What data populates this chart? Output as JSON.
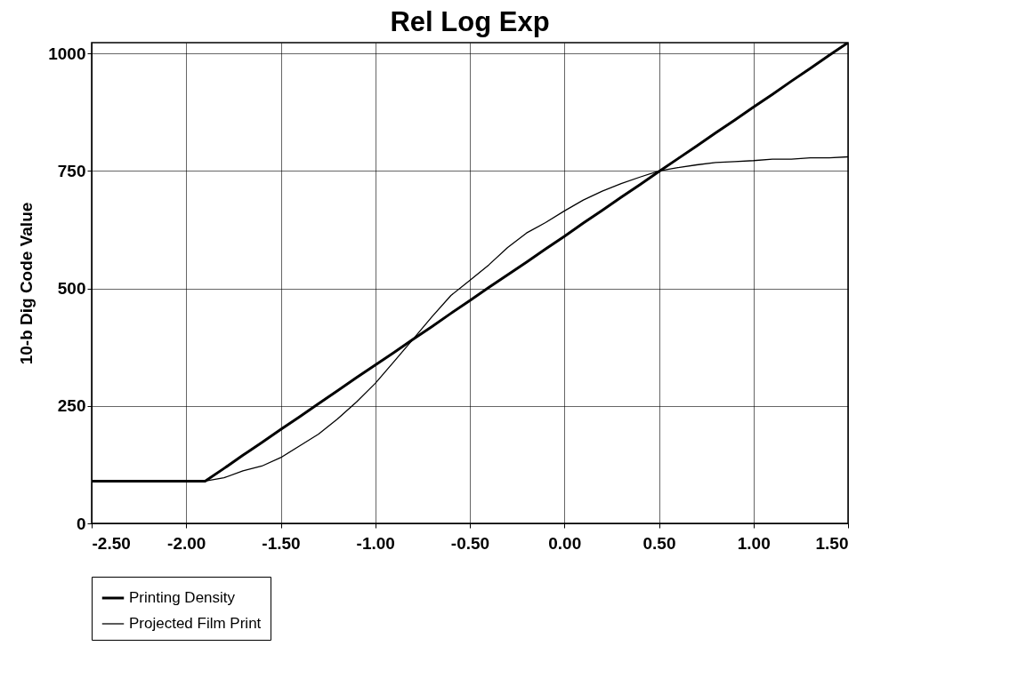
{
  "chart_data": {
    "type": "line",
    "title": "Rel Log Exp",
    "ylabel": "10-b Dig Code Value",
    "x": [
      -2.5,
      -2.4,
      -2.3,
      -2.2,
      -2.1,
      -2.0,
      -1.9,
      -1.8,
      -1.7,
      -1.6,
      -1.5,
      -1.4,
      -1.3,
      -1.2,
      -1.1,
      -1.0,
      -0.9,
      -0.8,
      -0.7,
      -0.6,
      -0.5,
      -0.4,
      -0.3,
      -0.2,
      -0.1,
      0.0,
      0.1,
      0.2,
      0.3,
      0.4,
      0.5,
      0.6,
      0.7,
      0.8,
      0.9,
      1.0,
      1.1,
      1.2,
      1.3,
      1.4,
      1.5
    ],
    "series": [
      {
        "name": "Printing Density",
        "color": "#000000",
        "values": [
          90,
          90,
          90,
          90,
          90,
          90,
          90,
          117,
          145,
          172,
          200,
          227,
          255,
          282,
          310,
          337,
          364,
          392,
          419,
          447,
          474,
          502,
          529,
          556,
          584,
          611,
          639,
          666,
          694,
          721,
          749,
          776,
          803,
          831,
          858,
          886,
          913,
          941,
          968,
          996,
          1023
        ]
      },
      {
        "name": "Projected Film Print",
        "color": "#000000",
        "values": [
          90,
          90,
          90,
          90,
          90,
          90,
          90,
          97,
          112,
          122,
          140,
          165,
          190,
          222,
          258,
          298,
          345,
          392,
          440,
          485,
          517,
          550,
          587,
          618,
          640,
          665,
          688,
          707,
          723,
          737,
          750,
          757,
          763,
          768,
          770,
          772,
          775,
          775,
          778,
          778,
          780
        ]
      }
    ],
    "xlim": [
      -2.5,
      1.5
    ],
    "xticks": [
      {
        "value": -2.5,
        "label": "-2.50"
      },
      {
        "value": -2.0,
        "label": "-2.00"
      },
      {
        "value": -1.5,
        "label": "-1.50"
      },
      {
        "value": -1.0,
        "label": "-1.00"
      },
      {
        "value": -0.5,
        "label": "-0.50"
      },
      {
        "value": 0.0,
        "label": "0.00"
      },
      {
        "value": 0.5,
        "label": "0.50"
      },
      {
        "value": 1.0,
        "label": "1.00"
      },
      {
        "value": 1.5,
        "label": "1.50"
      }
    ],
    "ylim": [
      0,
      1023
    ],
    "yticks": [
      0,
      250,
      500,
      750,
      1000
    ],
    "grid": true,
    "legend": "bottom",
    "marker": "none",
    "line_style": "solid"
  }
}
